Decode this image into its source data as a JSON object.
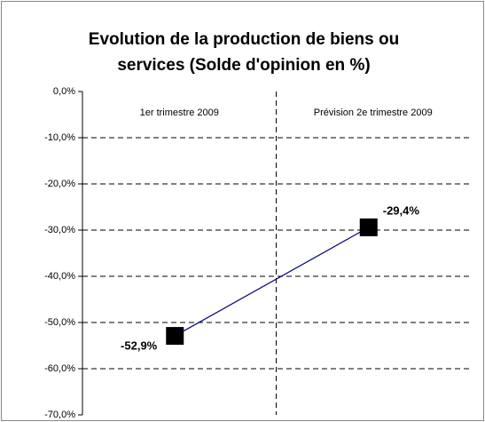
{
  "chart_data": {
    "type": "line",
    "title": "Evolution de la production de biens ou services (Solde d'opinion en %)",
    "categories": [
      "1er trimestre 2009",
      "Prévision 2e trimestre 2009"
    ],
    "series": [
      {
        "name": "Solde d'opinion",
        "color": "#000080",
        "marker_color": "#000000",
        "values": [
          -52.9,
          -29.4
        ],
        "value_labels": [
          "-52,9%",
          "-29,4%"
        ]
      }
    ],
    "ylim": [
      -70,
      0
    ],
    "yticks": [
      {
        "value": 0,
        "label": "0,0%"
      },
      {
        "value": -10,
        "label": "-10,0%"
      },
      {
        "value": -20,
        "label": "-20,0%"
      },
      {
        "value": -30,
        "label": "-30,0%"
      },
      {
        "value": -40,
        "label": "-40,0%"
      },
      {
        "value": -50,
        "label": "-50,0%"
      },
      {
        "value": -60,
        "label": "-60,0%"
      },
      {
        "value": -70,
        "label": "-70,0%"
      }
    ],
    "grid": true
  }
}
